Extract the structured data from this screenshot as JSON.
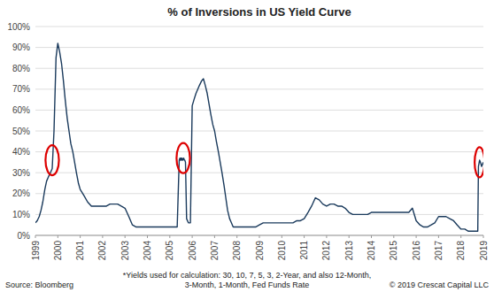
{
  "chart_data": {
    "type": "line",
    "title": "% of Inversions in US Yield Curve",
    "footnotes": [
      "*Yields used for calculation: 30, 10, 7, 5, 3, 2-Year, and also 12-Month,",
      "3-Month, 1-Month, Fed Funds Rate"
    ],
    "source": "Source: Bloomberg",
    "copyright": "© 2019 Crescat Capital LLC",
    "xlim": [
      1999,
      2019
    ],
    "xticks": [
      1999,
      2000,
      2001,
      2002,
      2003,
      2004,
      2005,
      2006,
      2007,
      2008,
      2009,
      2010,
      2011,
      2012,
      2013,
      2014,
      2015,
      2016,
      2017,
      2018,
      2019
    ],
    "ylim": [
      0,
      1.0
    ],
    "yticks": [
      {
        "value": 0,
        "label": "0%"
      },
      {
        "value": 0.1,
        "label": "10%"
      },
      {
        "value": 0.2,
        "label": "20%"
      },
      {
        "value": 0.3,
        "label": "30%"
      },
      {
        "value": 0.4,
        "label": "40%"
      },
      {
        "value": 0.5,
        "label": "50%"
      },
      {
        "value": 0.6,
        "label": "60%"
      },
      {
        "value": 0.7,
        "label": "70%"
      },
      {
        "value": 0.8,
        "label": "80%"
      },
      {
        "value": 0.9,
        "label": "90%"
      },
      {
        "value": 1.0,
        "label": "100%"
      }
    ],
    "grid": true,
    "highlights": [
      {
        "x": 1999.75,
        "y": 0.36,
        "rx": 0.3,
        "ry": 0.072,
        "color": "#dd0000"
      },
      {
        "x": 2005.6,
        "y": 0.37,
        "rx": 0.3,
        "ry": 0.072,
        "color": "#dd0000"
      },
      {
        "x": 2018.83,
        "y": 0.35,
        "rx": 0.22,
        "ry": 0.072,
        "color": "#dd0000"
      }
    ],
    "x": [
      1999.0,
      1999.08,
      1999.17,
      1999.25,
      1999.33,
      1999.42,
      1999.5,
      1999.58,
      1999.67,
      1999.75,
      1999.83,
      1999.92,
      2000.0,
      2000.08,
      2000.17,
      2000.25,
      2000.33,
      2000.42,
      2000.5,
      2000.58,
      2000.67,
      2000.75,
      2000.83,
      2000.92,
      2001.0,
      2001.17,
      2001.33,
      2001.5,
      2001.67,
      2001.83,
      2002.0,
      2002.17,
      2002.33,
      2002.5,
      2002.67,
      2002.83,
      2003.0,
      2003.17,
      2003.33,
      2003.5,
      2003.67,
      2003.83,
      2004.0,
      2004.17,
      2004.33,
      2004.5,
      2004.67,
      2004.83,
      2005.0,
      2005.17,
      2005.33,
      2005.42,
      2005.45,
      2005.48,
      2005.5,
      2005.52,
      2005.55,
      2005.58,
      2005.62,
      2005.65,
      2005.67,
      2005.7,
      2005.75,
      2005.83,
      2005.92,
      2006.0,
      2006.08,
      2006.17,
      2006.25,
      2006.33,
      2006.42,
      2006.5,
      2006.58,
      2006.67,
      2006.75,
      2006.83,
      2006.92,
      2007.0,
      2007.08,
      2007.17,
      2007.25,
      2007.33,
      2007.42,
      2007.5,
      2007.58,
      2007.67,
      2007.75,
      2007.83,
      2007.92,
      2008.0,
      2008.17,
      2008.33,
      2008.5,
      2008.67,
      2008.83,
      2009.0,
      2009.17,
      2009.33,
      2009.5,
      2009.67,
      2009.83,
      2010.0,
      2010.17,
      2010.33,
      2010.5,
      2010.67,
      2010.83,
      2011.0,
      2011.17,
      2011.33,
      2011.5,
      2011.67,
      2011.83,
      2012.0,
      2012.17,
      2012.33,
      2012.5,
      2012.67,
      2012.83,
      2013.0,
      2013.17,
      2013.33,
      2013.5,
      2013.67,
      2013.83,
      2014.0,
      2014.17,
      2014.33,
      2014.5,
      2014.67,
      2014.83,
      2015.0,
      2015.17,
      2015.33,
      2015.5,
      2015.67,
      2015.83,
      2016.0,
      2016.17,
      2016.33,
      2016.5,
      2016.67,
      2016.83,
      2017.0,
      2017.17,
      2017.33,
      2017.5,
      2017.67,
      2017.83,
      2018.0,
      2018.17,
      2018.33,
      2018.5,
      2018.67,
      2018.75,
      2018.78,
      2018.83,
      2018.87,
      2018.92,
      2019.0
    ],
    "series": [
      {
        "color": "#1a3a5c",
        "values": [
          0.06,
          0.07,
          0.09,
          0.12,
          0.16,
          0.22,
          0.26,
          0.28,
          0.3,
          0.32,
          0.5,
          0.85,
          0.92,
          0.88,
          0.82,
          0.74,
          0.65,
          0.56,
          0.5,
          0.44,
          0.4,
          0.35,
          0.3,
          0.25,
          0.22,
          0.19,
          0.16,
          0.14,
          0.14,
          0.14,
          0.14,
          0.14,
          0.15,
          0.15,
          0.15,
          0.14,
          0.13,
          0.09,
          0.05,
          0.04,
          0.04,
          0.04,
          0.04,
          0.04,
          0.04,
          0.04,
          0.04,
          0.04,
          0.04,
          0.04,
          0.04,
          0.36,
          0.37,
          0.36,
          0.37,
          0.36,
          0.37,
          0.36,
          0.37,
          0.36,
          0.36,
          0.35,
          0.08,
          0.06,
          0.06,
          0.62,
          0.65,
          0.68,
          0.7,
          0.72,
          0.74,
          0.75,
          0.72,
          0.68,
          0.63,
          0.58,
          0.53,
          0.5,
          0.45,
          0.4,
          0.35,
          0.3,
          0.24,
          0.18,
          0.12,
          0.08,
          0.06,
          0.04,
          0.04,
          0.04,
          0.04,
          0.04,
          0.04,
          0.04,
          0.04,
          0.05,
          0.06,
          0.06,
          0.06,
          0.06,
          0.06,
          0.06,
          0.06,
          0.06,
          0.06,
          0.07,
          0.07,
          0.08,
          0.11,
          0.14,
          0.18,
          0.17,
          0.15,
          0.14,
          0.15,
          0.15,
          0.14,
          0.14,
          0.13,
          0.11,
          0.1,
          0.1,
          0.1,
          0.1,
          0.1,
          0.11,
          0.11,
          0.11,
          0.11,
          0.11,
          0.11,
          0.11,
          0.11,
          0.11,
          0.11,
          0.11,
          0.13,
          0.07,
          0.05,
          0.04,
          0.04,
          0.05,
          0.06,
          0.09,
          0.09,
          0.09,
          0.08,
          0.07,
          0.05,
          0.03,
          0.03,
          0.02,
          0.02,
          0.02,
          0.02,
          0.33,
          0.36,
          0.35,
          0.33,
          0.35
        ]
      }
    ]
  }
}
